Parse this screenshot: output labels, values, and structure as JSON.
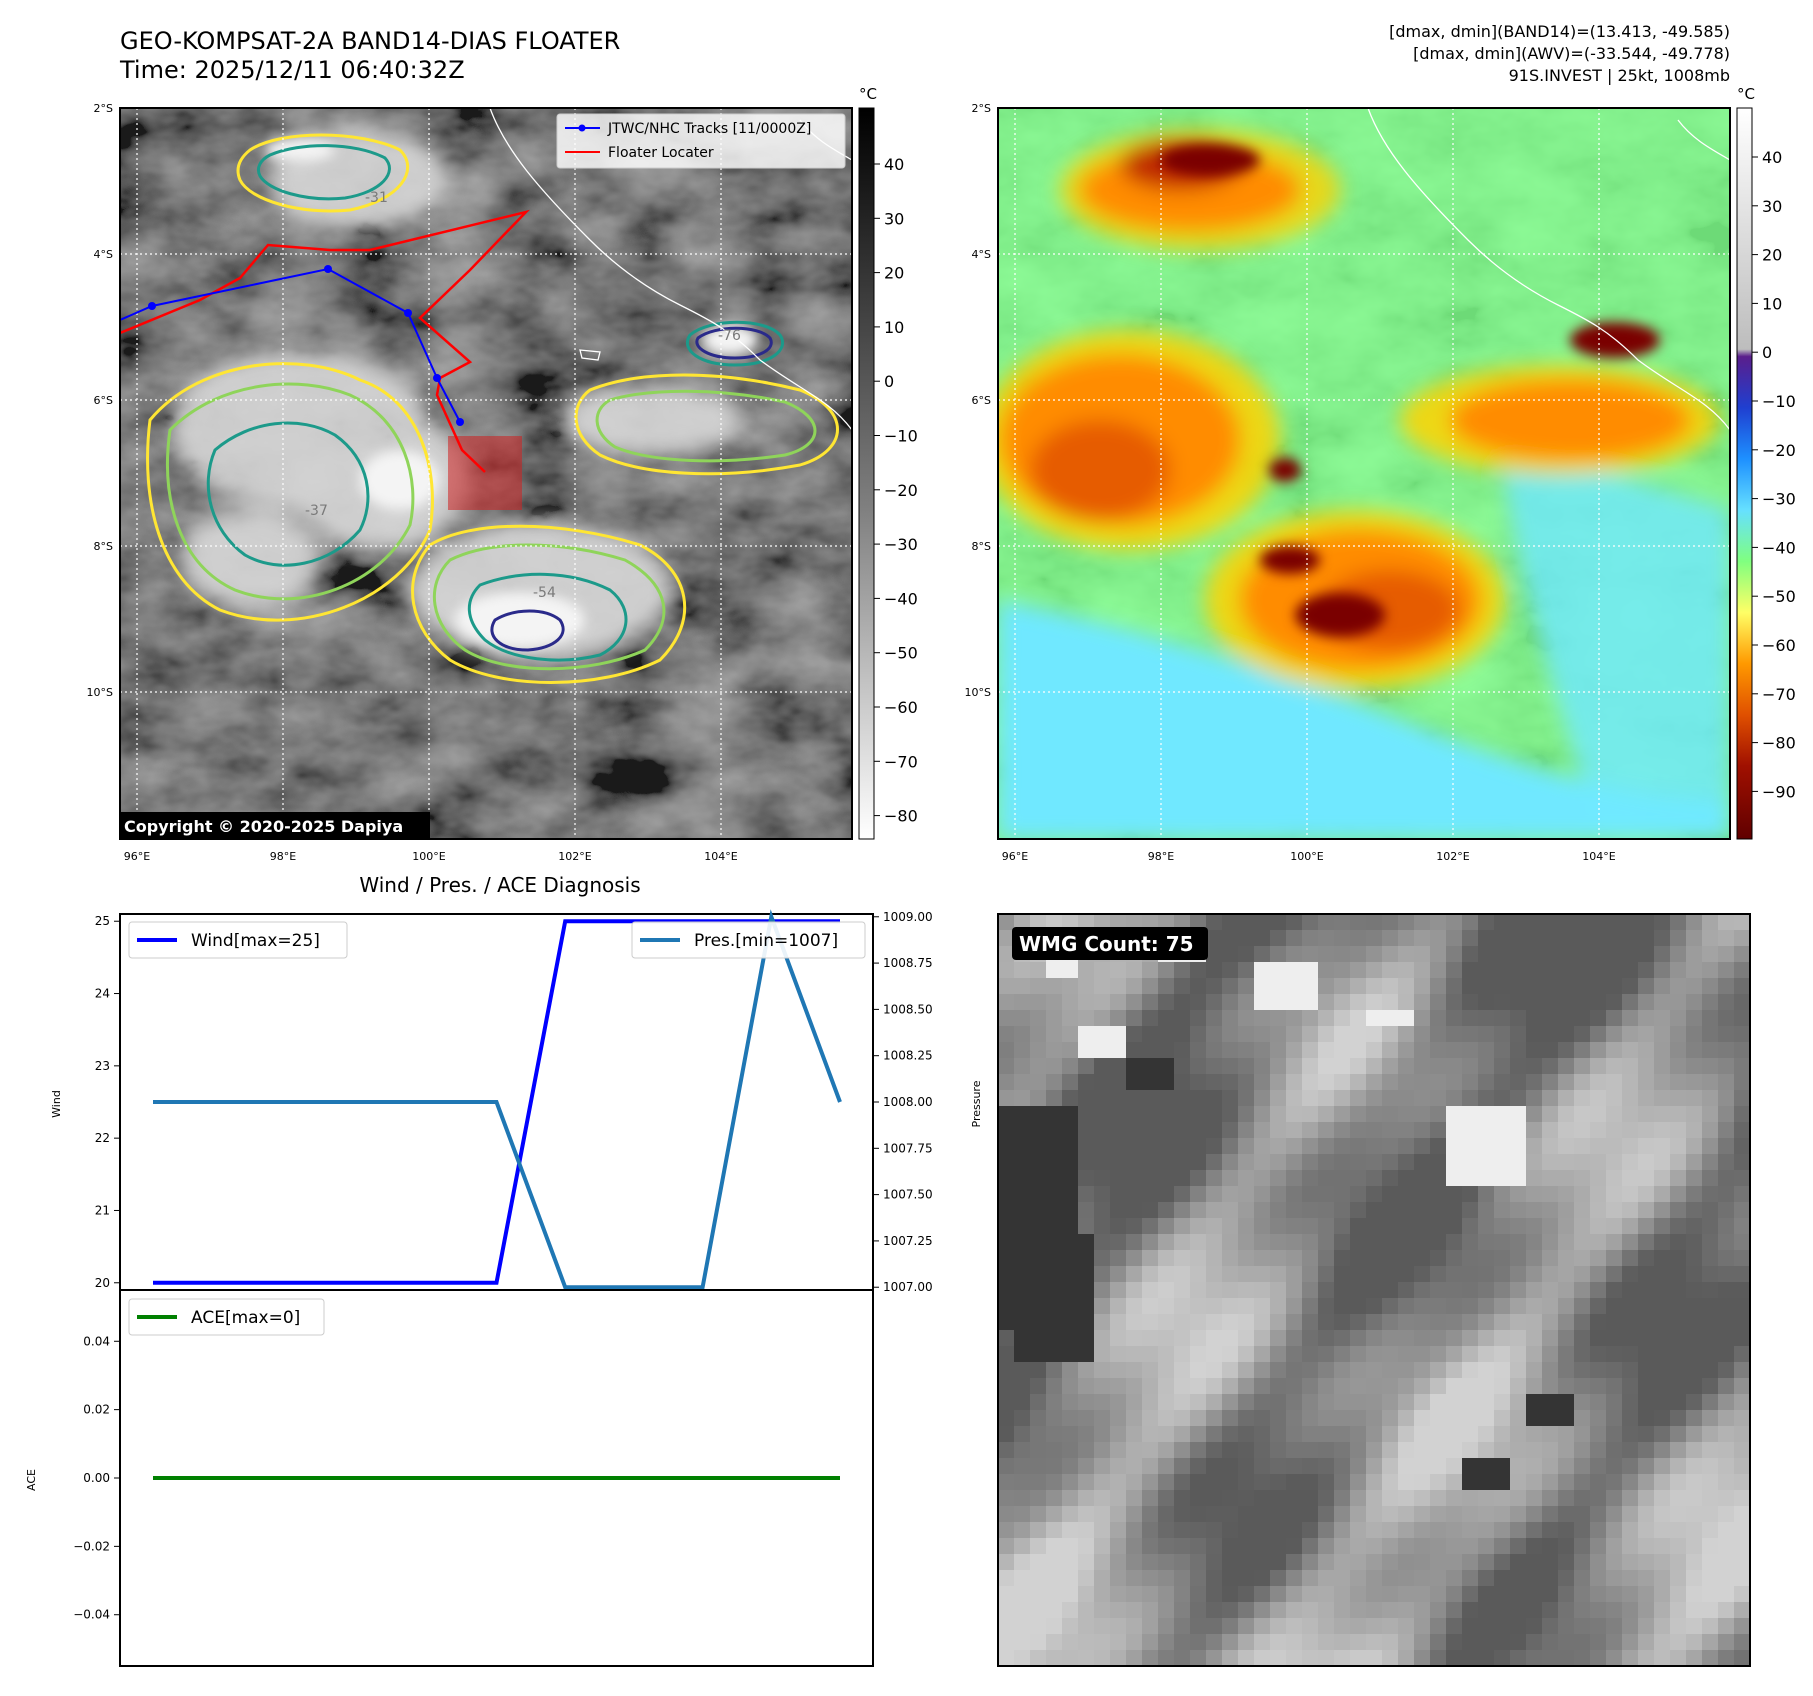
{
  "header": {
    "title_line1": "GEO-KOMPSAT-2A BAND14-DIAS FLOATER",
    "title_line2": "Time: 2025/12/11 06:40:32Z",
    "info_line1": "[dmax, dmin](BAND14)=(13.413, -49.585)",
    "info_line2": "[dmax, dmin](AWV)=(-33.544, -49.778)",
    "info_line3": "91S.INVEST | 25kt, 1008mb"
  },
  "map": {
    "lat_labels": [
      "2°S",
      "4°S",
      "6°S",
      "8°S",
      "10°S"
    ],
    "lon_labels": [
      "96°E",
      "98°E",
      "100°E",
      "102°E",
      "104°E"
    ],
    "legend": [
      "JTWC/NHC Tracks [11/0000Z]",
      "Floater Locater"
    ],
    "copyright": "Copyright © 2020-2025 Dapiya",
    "contour_labels": [
      "-31",
      "-37",
      "-54",
      "-76"
    ],
    "colorbar1_unit": "°C",
    "colorbar1_ticks": [
      "40",
      "30",
      "20",
      "10",
      "0",
      "−10",
      "−20",
      "−30",
      "−40",
      "−50",
      "−60",
      "−70",
      "−80"
    ],
    "colorbar2_unit": "°C",
    "colorbar2_ticks": [
      "40",
      "30",
      "20",
      "10",
      "0",
      "−10",
      "−20",
      "−30",
      "−40",
      "−50",
      "−60",
      "−70",
      "−80",
      "−90"
    ],
    "track_color": "#0000ff",
    "floater_color": "#ff0000"
  },
  "wmg": {
    "label": "WMG Count: 75"
  },
  "chart_data": [
    {
      "type": "line",
      "title": "Wind / Pres. / ACE Diagnosis",
      "ylabel": "Wind",
      "y2label": "Pressure",
      "ylim": [
        19.9,
        25.1
      ],
      "y2lim": [
        1006.985,
        1009.015
      ],
      "yticks": [
        "25",
        "24",
        "23",
        "22",
        "21",
        "20"
      ],
      "y2ticks": [
        "1009.00",
        "1008.75",
        "1008.50",
        "1008.25",
        "1008.00",
        "1007.75",
        "1007.50",
        "1007.25",
        "1007.00"
      ],
      "x": [
        0,
        1,
        2,
        3,
        4,
        5,
        6,
        7,
        8,
        9,
        10
      ],
      "series": [
        {
          "name": "Wind[max=25]",
          "axis": "left",
          "color": "#0000ff",
          "values": [
            20,
            20,
            20,
            20,
            20,
            20,
            25,
            25,
            25,
            25,
            25
          ]
        },
        {
          "name": "Pres.[min=1007]",
          "axis": "right",
          "color": "#1f77b4",
          "values": [
            1008,
            1008,
            1008,
            1008,
            1008,
            1008,
            1007,
            1007,
            1007,
            1009,
            1008
          ]
        }
      ]
    },
    {
      "type": "line",
      "ylabel": "ACE",
      "ylim": [
        -0.055,
        0.055
      ],
      "yticks": [
        "0.04",
        "0.02",
        "0.00",
        "−0.02",
        "−0.04"
      ],
      "x": [
        0,
        1,
        2,
        3,
        4,
        5,
        6,
        7,
        8,
        9,
        10
      ],
      "series": [
        {
          "name": "ACE[max=0]",
          "color": "#008000",
          "values": [
            0,
            0,
            0,
            0,
            0,
            0,
            0,
            0,
            0,
            0,
            0
          ]
        }
      ]
    }
  ]
}
